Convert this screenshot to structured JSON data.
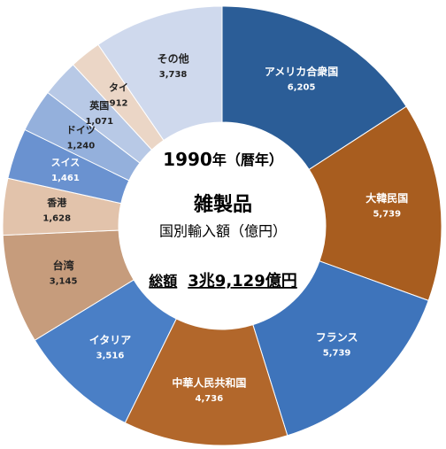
{
  "chart_data": {
    "type": "donut",
    "center": {
      "year": "1990",
      "year_suffix": "年（暦年）",
      "title": "雑製品",
      "subtitle": "国別輸入額（億円）",
      "total_label": "総額",
      "total_value": "3兆9,129億円"
    },
    "categories": [
      "アメリカ合衆国",
      "大韓民国",
      "フランス",
      "中華人民共和国",
      "イタリア",
      "台湾",
      "香港",
      "スイス",
      "ドイツ",
      "英国",
      "タイ",
      "その他"
    ],
    "values": [
      6205,
      5739,
      5739,
      4736,
      3516,
      3145,
      1628,
      1461,
      1240,
      1071,
      912,
      3738
    ],
    "value_labels": [
      "6,205",
      "5,739",
      "5,739",
      "4,736",
      "3,516",
      "3,145",
      "1,628",
      "1,461",
      "1,240",
      "1,071",
      "912",
      "3,738"
    ],
    "colors": [
      "#2b5d97",
      "#a85d1f",
      "#3e74bb",
      "#b2672b",
      "#4a7fc6",
      "#c69c7c",
      "#e2c3ab",
      "#6a92d0",
      "#94b0dc",
      "#b8c9e6",
      "#ebd6c6",
      "#cfd9ed"
    ]
  }
}
